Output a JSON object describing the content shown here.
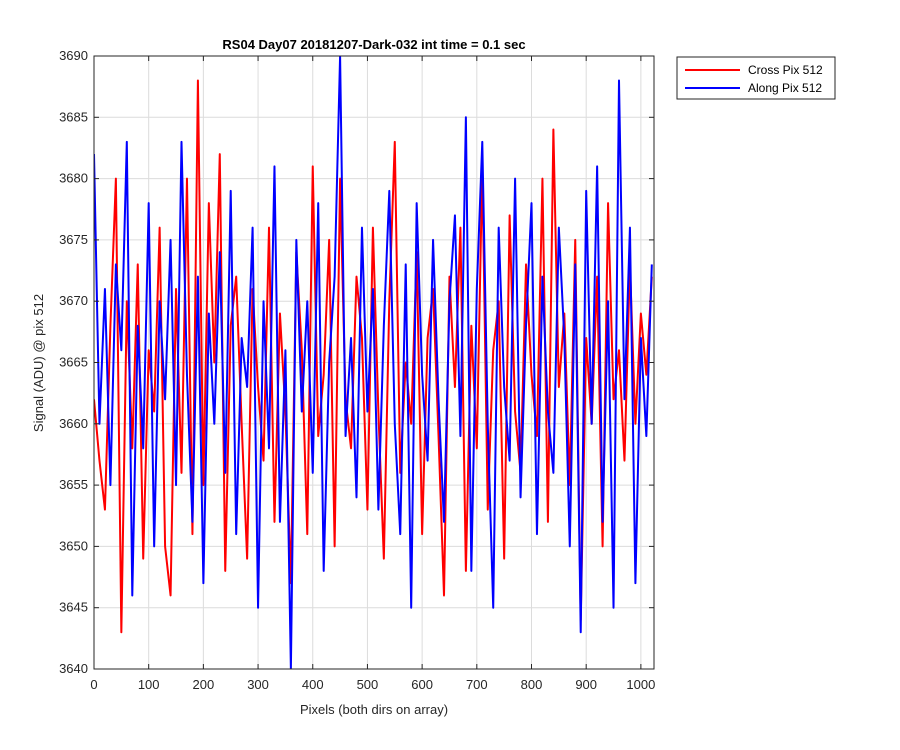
{
  "chart_data": {
    "type": "line",
    "title": "RS04 Day07 20181207-Dark-032 int time = 0.1 sec",
    "xlabel": "Pixels (both dirs on array)",
    "ylabel": "Signal (ADU) @ pix 512",
    "xlim": [
      0,
      1024
    ],
    "ylim": [
      3640,
      3690
    ],
    "xticks": [
      0,
      100,
      200,
      300,
      400,
      500,
      600,
      700,
      800,
      900,
      1000
    ],
    "yticks": [
      3640,
      3645,
      3650,
      3655,
      3660,
      3665,
      3670,
      3675,
      3680,
      3685,
      3690
    ],
    "grid": true,
    "legend_position": "outside-top-right",
    "series": [
      {
        "name": "Cross Pix 512",
        "color": "#ff0000",
        "x": [
          0,
          10,
          20,
          30,
          40,
          50,
          60,
          70,
          80,
          90,
          100,
          110,
          120,
          130,
          140,
          150,
          160,
          170,
          180,
          190,
          200,
          210,
          220,
          230,
          240,
          250,
          260,
          270,
          280,
          290,
          300,
          310,
          320,
          330,
          340,
          350,
          360,
          370,
          380,
          390,
          400,
          410,
          420,
          430,
          440,
          450,
          460,
          470,
          480,
          490,
          500,
          510,
          520,
          530,
          540,
          550,
          560,
          570,
          580,
          590,
          600,
          610,
          620,
          630,
          640,
          650,
          660,
          670,
          680,
          690,
          700,
          710,
          720,
          730,
          740,
          750,
          760,
          770,
          780,
          790,
          800,
          810,
          820,
          830,
          840,
          850,
          860,
          870,
          880,
          890,
          900,
          910,
          920,
          930,
          940,
          950,
          960,
          970,
          980,
          990,
          1000,
          1010,
          1020
        ],
        "y": [
          3662,
          3657,
          3653,
          3668,
          3680,
          3643,
          3670,
          3658,
          3673,
          3649,
          3666,
          3661,
          3676,
          3650,
          3646,
          3671,
          3656,
          3680,
          3651,
          3688,
          3655,
          3678,
          3665,
          3682,
          3648,
          3668,
          3672,
          3660,
          3649,
          3671,
          3663,
          3657,
          3676,
          3652,
          3669,
          3661,
          3647,
          3674,
          3666,
          3651,
          3681,
          3659,
          3664,
          3675,
          3650,
          3680,
          3662,
          3658,
          3672,
          3667,
          3653,
          3676,
          3661,
          3649,
          3670,
          3683,
          3656,
          3665,
          3660,
          3674,
          3651,
          3667,
          3671,
          3659,
          3646,
          3672,
          3663,
          3676,
          3648,
          3668,
          3658,
          3681,
          3653,
          3666,
          3670,
          3649,
          3677,
          3661,
          3656,
          3673,
          3664,
          3659,
          3680,
          3652,
          3684,
          3663,
          3669,
          3655,
          3675,
          3644,
          3667,
          3660,
          3672,
          3650,
          3678,
          3662,
          3666,
          3657,
          3673,
          3660,
          3669,
          3664,
          3672
        ]
      },
      {
        "name": "Along Pix 512",
        "color": "#0000ff",
        "x": [
          0,
          10,
          20,
          30,
          40,
          50,
          60,
          70,
          80,
          90,
          100,
          110,
          120,
          130,
          140,
          150,
          160,
          170,
          180,
          190,
          200,
          210,
          220,
          230,
          240,
          250,
          260,
          270,
          280,
          290,
          300,
          310,
          320,
          330,
          340,
          350,
          360,
          370,
          380,
          390,
          400,
          410,
          420,
          430,
          440,
          450,
          460,
          470,
          480,
          490,
          500,
          510,
          520,
          530,
          540,
          550,
          560,
          570,
          580,
          590,
          600,
          610,
          620,
          630,
          640,
          650,
          660,
          670,
          680,
          690,
          700,
          710,
          720,
          730,
          740,
          750,
          760,
          770,
          780,
          790,
          800,
          810,
          820,
          830,
          840,
          850,
          860,
          870,
          880,
          890,
          900,
          910,
          920,
          930,
          940,
          950,
          960,
          970,
          980,
          990,
          1000,
          1010,
          1020
        ],
        "y": [
          3682,
          3660,
          3671,
          3655,
          3673,
          3666,
          3683,
          3646,
          3668,
          3658,
          3678,
          3650,
          3670,
          3662,
          3675,
          3655,
          3683,
          3664,
          3652,
          3672,
          3647,
          3669,
          3660,
          3674,
          3656,
          3679,
          3651,
          3667,
          3663,
          3676,
          3645,
          3670,
          3658,
          3681,
          3652,
          3666,
          3640,
          3675,
          3661,
          3670,
          3656,
          3678,
          3648,
          3665,
          3672,
          3690,
          3659,
          3667,
          3654,
          3676,
          3661,
          3671,
          3653,
          3668,
          3679,
          3660,
          3651,
          3673,
          3645,
          3678,
          3664,
          3657,
          3675,
          3662,
          3652,
          3670,
          3677,
          3659,
          3685,
          3648,
          3671,
          3683,
          3660,
          3645,
          3676,
          3663,
          3657,
          3680,
          3654,
          3668,
          3678,
          3651,
          3672,
          3661,
          3656,
          3676,
          3667,
          3650,
          3673,
          3643,
          3679,
          3660,
          3681,
          3652,
          3670,
          3645,
          3688,
          3662,
          3676,
          3647,
          3667,
          3659,
          3673
        ]
      }
    ]
  }
}
